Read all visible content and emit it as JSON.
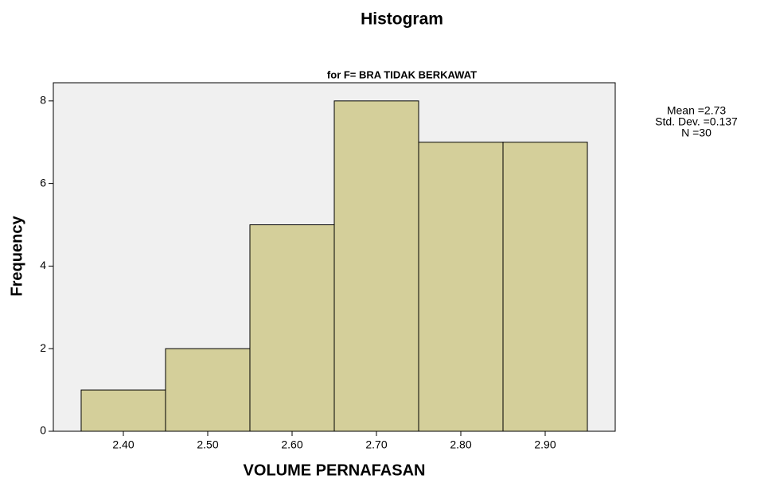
{
  "chart_data": {
    "type": "histogram",
    "title": "Histogram",
    "subtitle": "for F= BRA TIDAK BERKAWAT",
    "x_label": "VOLUME PERNAFASAN",
    "y_label": "Frequency",
    "bins": [
      2.35,
      2.45,
      2.55,
      2.65,
      2.75,
      2.85,
      2.95
    ],
    "counts": [
      1,
      2,
      5,
      8,
      7,
      7
    ],
    "color": "#d4cf9a",
    "background": "#f0f0f0",
    "xlim": [
      2.317,
      2.983
    ],
    "ylim": [
      0,
      8.44
    ],
    "xticks": [
      {
        "value": 2.4,
        "label": "2.40"
      },
      {
        "value": 2.5,
        "label": "2.50"
      },
      {
        "value": 2.6,
        "label": "2.60"
      },
      {
        "value": 2.7,
        "label": "2.70"
      },
      {
        "value": 2.8,
        "label": "2.80"
      },
      {
        "value": 2.9,
        "label": "2.90"
      }
    ],
    "yticks": [
      0,
      2,
      4,
      6,
      8
    ],
    "grid": false,
    "annotations": [
      "Mean =2.73",
      "Std. Dev. =0.137",
      "N =30"
    ]
  }
}
